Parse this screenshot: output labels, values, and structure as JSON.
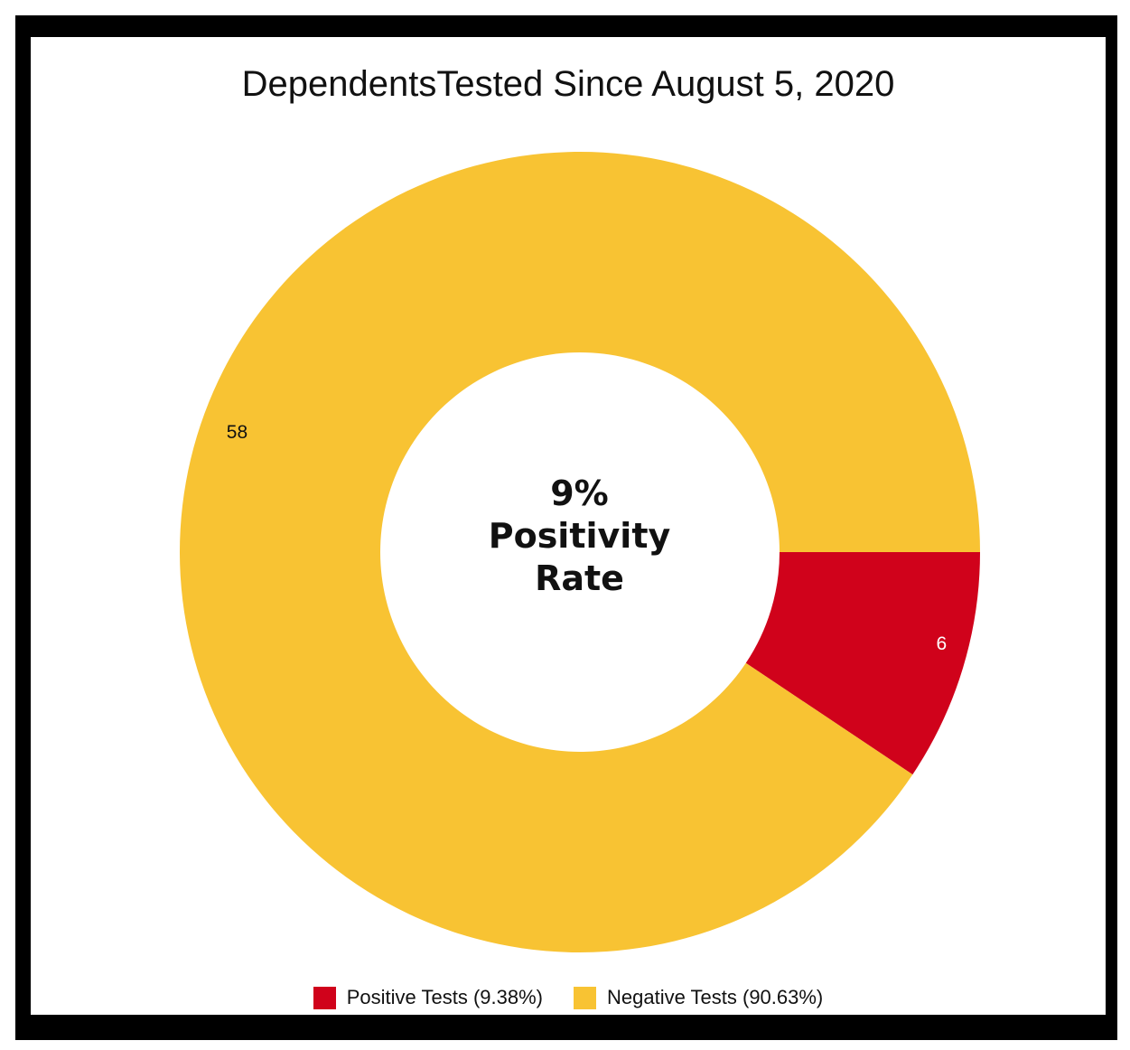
{
  "chart_data": {
    "type": "pie",
    "title": "DependentsTested Since August 5, 2020",
    "center_label": [
      "9%",
      "Positivity",
      "Rate"
    ],
    "slices": [
      {
        "name": "Positive Tests",
        "value": 6,
        "label": "6",
        "legend": "Positive Tests (9.38%)",
        "color": "#d0021b",
        "label_color": "#ffffff"
      },
      {
        "name": "Negative Tests",
        "value": 58,
        "label": "58",
        "legend": "Negative Tests (90.63%)",
        "color": "#f8c333",
        "label_color": "#111111"
      }
    ],
    "donut": true,
    "legend_position": "bottom"
  }
}
